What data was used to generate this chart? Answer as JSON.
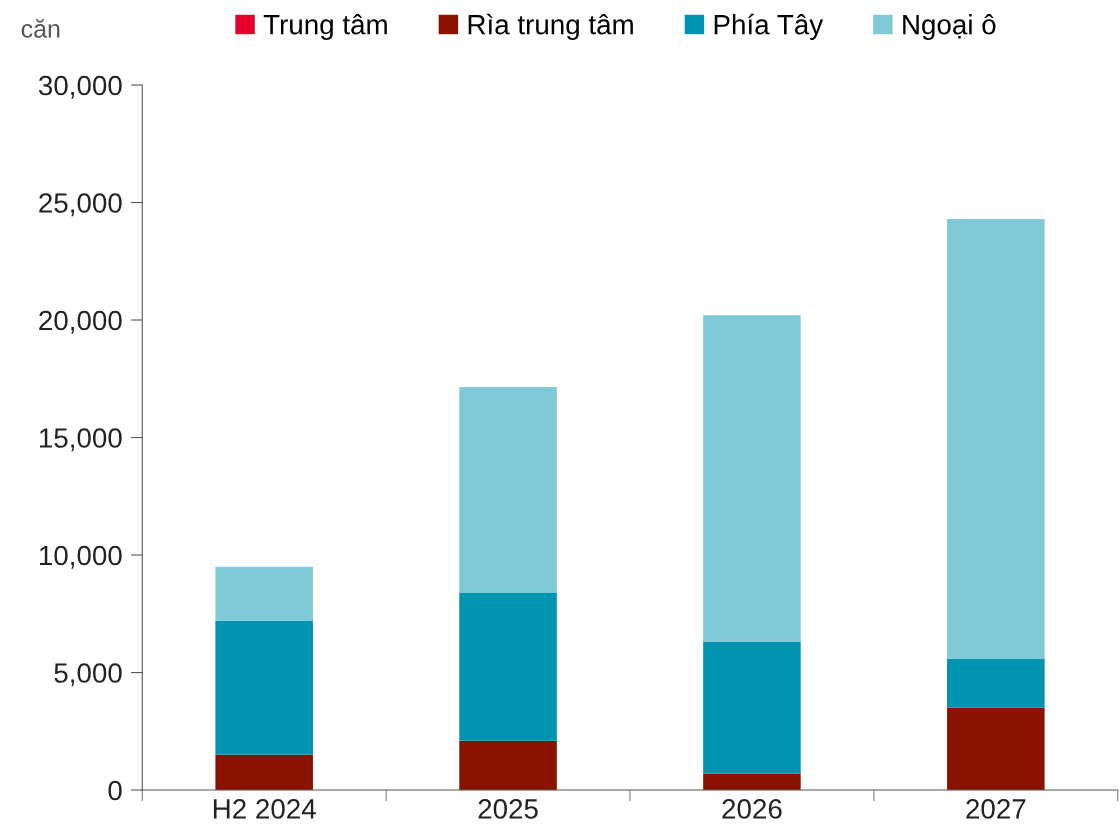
{
  "chart_data": {
    "type": "bar",
    "stacked": true,
    "ylabel": "căn",
    "categories": [
      "H2 2024",
      "2025",
      "2026",
      "2027"
    ],
    "series": [
      {
        "name": "Trung tâm",
        "color": "#e4002b",
        "values": [
          0,
          0,
          0,
          0
        ]
      },
      {
        "name": "Rìa trung tâm",
        "color": "#8b1200",
        "values": [
          1500,
          2100,
          700,
          3500
        ]
      },
      {
        "name": "Phía Tây",
        "color": "#0094b0",
        "values": [
          5700,
          6300,
          5600,
          2100
        ]
      },
      {
        "name": "Ngoại ô",
        "color": "#80cad7",
        "values": [
          2300,
          8750,
          13900,
          18700
        ]
      }
    ],
    "ylim": [
      0,
      30000
    ],
    "yticks": [
      {
        "value": 0,
        "label": "0"
      },
      {
        "value": 5000,
        "label": "5,000"
      },
      {
        "value": 10000,
        "label": "10,000"
      },
      {
        "value": 15000,
        "label": "15,000"
      },
      {
        "value": 20000,
        "label": "20,000"
      },
      {
        "value": 25000,
        "label": "25,000"
      },
      {
        "value": 30000,
        "label": "30,000"
      }
    ],
    "grid": false,
    "legend": "top"
  }
}
